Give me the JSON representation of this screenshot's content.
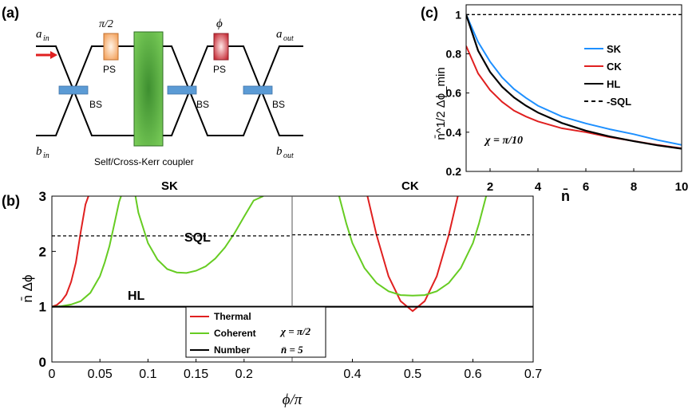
{
  "panel_a": {
    "label": "(a)",
    "a_in": "a_in",
    "b_in": "b_in",
    "a_out": "a_out",
    "b_out": "b_out",
    "ps1_top": "π/2",
    "ps1_bottom": "PS",
    "ps2_top": "ϕ",
    "ps2_bottom": "PS",
    "bs_labels": [
      "BS",
      "BS",
      "BS"
    ],
    "coupler_label": "Self/Cross-Kerr coupler",
    "colors": {
      "beam_splitter": "#5b9bd5",
      "coupler": "#55a84a",
      "ps1": "#f4a460",
      "ps2": "#d43c3c",
      "arrow": "#e02020"
    }
  },
  "panel_b": {
    "label": "(b)",
    "sub_titles": [
      "SK",
      "CK"
    ],
    "line_labels": {
      "sql": "SQL",
      "hl": "HL"
    },
    "ylabel": "n̄ Δϕ",
    "xlabel": "ϕ/π",
    "legend": {
      "thermal": "Thermal",
      "coherent": "Coherent",
      "number": "Number",
      "chi": "χ = π/2",
      "nbar": "n̄ = 5"
    }
  },
  "panel_c": {
    "label": "(c)",
    "ylabel": "n̄^1/2 Δϕ_min",
    "xlabel": "n̄",
    "chi_text": "χ = π/10",
    "legend": [
      "SK",
      "CK",
      "HL",
      "-SQL"
    ]
  },
  "chart_data": [
    {
      "type": "line",
      "panel": "b",
      "xlabel": "ϕ/π",
      "ylabel": "n̄ Δϕ",
      "ylim": [
        0,
        3
      ],
      "ticks_y": [
        "0",
        "1",
        "2",
        "3"
      ],
      "ticks_x": [
        "0",
        "0.05",
        "0.1",
        "0.15",
        "0.2",
        "0.4",
        "0.5",
        "0.6",
        "0.7"
      ],
      "left": {
        "title": "SK",
        "xlim": [
          0,
          0.25
        ],
        "series": [
          {
            "name": "Thermal",
            "color": "#e02020",
            "x": [
              0,
              0.005,
              0.01,
              0.015,
              0.02,
              0.025,
              0.03,
              0.035,
              0.038
            ],
            "y": [
              1.0,
              1.03,
              1.1,
              1.22,
              1.45,
              1.8,
              2.35,
              2.85,
              3.0
            ]
          },
          {
            "name": "Coherent",
            "color": "#66cc22",
            "x": [
              0,
              0.01,
              0.02,
              0.03,
              0.04,
              0.05,
              0.055,
              0.06,
              0.065,
              0.07,
              0.072
            ],
            "y": [
              1.0,
              1.01,
              1.04,
              1.1,
              1.25,
              1.55,
              1.8,
              2.1,
              2.5,
              2.9,
              3.0
            ]
          },
          {
            "name": "Coherent",
            "color": "#66cc22",
            "x": [
              0.087,
              0.09,
              0.1,
              0.11,
              0.12,
              0.13,
              0.14,
              0.15,
              0.16,
              0.17,
              0.18,
              0.19,
              0.2,
              0.21,
              0.22
            ],
            "y": [
              3.0,
              2.7,
              2.15,
              1.85,
              1.68,
              1.62,
              1.61,
              1.65,
              1.73,
              1.87,
              2.07,
              2.33,
              2.63,
              2.92,
              3.0
            ]
          },
          {
            "name": "SQL",
            "color": "#000000",
            "dash": true,
            "x": [
              0,
              0.25
            ],
            "y": [
              2.28,
              2.28
            ]
          },
          {
            "name": "Number",
            "color": "#000000",
            "x": [
              0,
              0.25
            ],
            "y": [
              1.0,
              1.0
            ]
          }
        ]
      },
      "right": {
        "title": "CK",
        "xlim": [
          0.3,
          0.7
        ],
        "series": [
          {
            "name": "Thermal",
            "color": "#e02020",
            "x": [
              0.425,
              0.44,
              0.46,
              0.48,
              0.5,
              0.52,
              0.54,
              0.56,
              0.575
            ],
            "y": [
              3.0,
              2.3,
              1.55,
              1.1,
              0.92,
              1.1,
              1.55,
              2.3,
              3.0
            ]
          },
          {
            "name": "Coherent",
            "color": "#66cc22",
            "x": [
              0.378,
              0.39,
              0.4,
              0.42,
              0.44,
              0.46,
              0.48,
              0.5,
              0.52,
              0.54,
              0.56,
              0.58,
              0.6,
              0.61,
              0.622
            ],
            "y": [
              3.0,
              2.5,
              2.15,
              1.7,
              1.43,
              1.28,
              1.21,
              1.2,
              1.21,
              1.28,
              1.43,
              1.7,
              2.15,
              2.5,
              3.0
            ]
          },
          {
            "name": "SQL",
            "color": "#000000",
            "dash": true,
            "x": [
              0.3,
              0.7
            ],
            "y": [
              2.3,
              2.3
            ]
          },
          {
            "name": "Number",
            "color": "#000000",
            "x": [
              0.3,
              0.7
            ],
            "y": [
              1.0,
              1.0
            ]
          }
        ]
      }
    },
    {
      "type": "line",
      "panel": "c",
      "xlabel": "n̄",
      "ylabel": "n̄^1/2 Δϕ_min",
      "xlim": [
        1,
        10
      ],
      "ylim": [
        0.2,
        1.05
      ],
      "ticks_x": [
        "2",
        "4",
        "6",
        "8",
        "10"
      ],
      "ticks_y": [
        "0.2",
        "0.4",
        "0.6",
        "0.8",
        "1"
      ],
      "series": [
        {
          "name": "SK",
          "color": "#1e90ff",
          "x": [
            1,
            1.5,
            2,
            2.5,
            3,
            3.5,
            4,
            5,
            6,
            7,
            8,
            9,
            10
          ],
          "y": [
            1.0,
            0.86,
            0.76,
            0.68,
            0.62,
            0.575,
            0.535,
            0.48,
            0.445,
            0.415,
            0.39,
            0.36,
            0.335
          ]
        },
        {
          "name": "CK",
          "color": "#e02020",
          "x": [
            1,
            1.5,
            2,
            2.5,
            3,
            3.5,
            4,
            5,
            6,
            7,
            8,
            9,
            10
          ],
          "y": [
            0.84,
            0.7,
            0.615,
            0.555,
            0.51,
            0.48,
            0.455,
            0.42,
            0.4,
            0.375,
            0.355,
            0.335,
            0.318
          ]
        },
        {
          "name": "HL",
          "color": "#000000",
          "x": [
            1,
            1.5,
            2,
            2.5,
            3,
            3.5,
            4,
            5,
            6,
            7,
            8,
            9,
            10
          ],
          "y": [
            1.0,
            0.816,
            0.707,
            0.632,
            0.577,
            0.535,
            0.5,
            0.447,
            0.408,
            0.378,
            0.354,
            0.333,
            0.316
          ]
        },
        {
          "name": "-SQL",
          "color": "#000000",
          "dash": true,
          "x": [
            1,
            10
          ],
          "y": [
            1.0,
            1.0
          ]
        }
      ]
    }
  ]
}
